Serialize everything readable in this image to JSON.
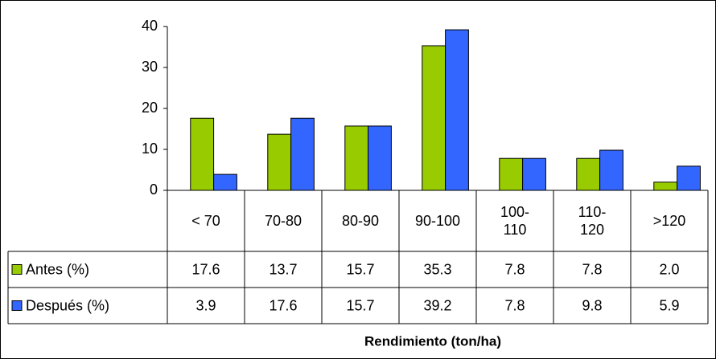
{
  "chart_data": {
    "type": "bar",
    "categories": [
      "< 70",
      "70-80",
      "80-90",
      "90-100",
      "100-110",
      "110-120",
      ">120"
    ],
    "series": [
      {
        "name": "Antes (%)",
        "color": "#99cc00",
        "values": [
          17.6,
          13.7,
          15.7,
          35.3,
          7.8,
          7.8,
          2.0
        ],
        "value_labels": [
          "17.6",
          "13.7",
          "15.7",
          "35.3",
          "7.8",
          "7.8",
          "2.0"
        ]
      },
      {
        "name": "Después (%)",
        "color": "#3366ff",
        "values": [
          3.9,
          17.6,
          15.7,
          39.2,
          7.8,
          9.8,
          5.9
        ],
        "value_labels": [
          "3.9",
          "17.6",
          "15.7",
          "39.2",
          "7.8",
          "9.8",
          "5.9"
        ]
      }
    ],
    "ylim": [
      0,
      40
    ],
    "yticks": [
      0,
      10,
      20,
      30,
      40
    ],
    "x_label": "Rendimiento (ton/ha)",
    "data_table": true
  }
}
